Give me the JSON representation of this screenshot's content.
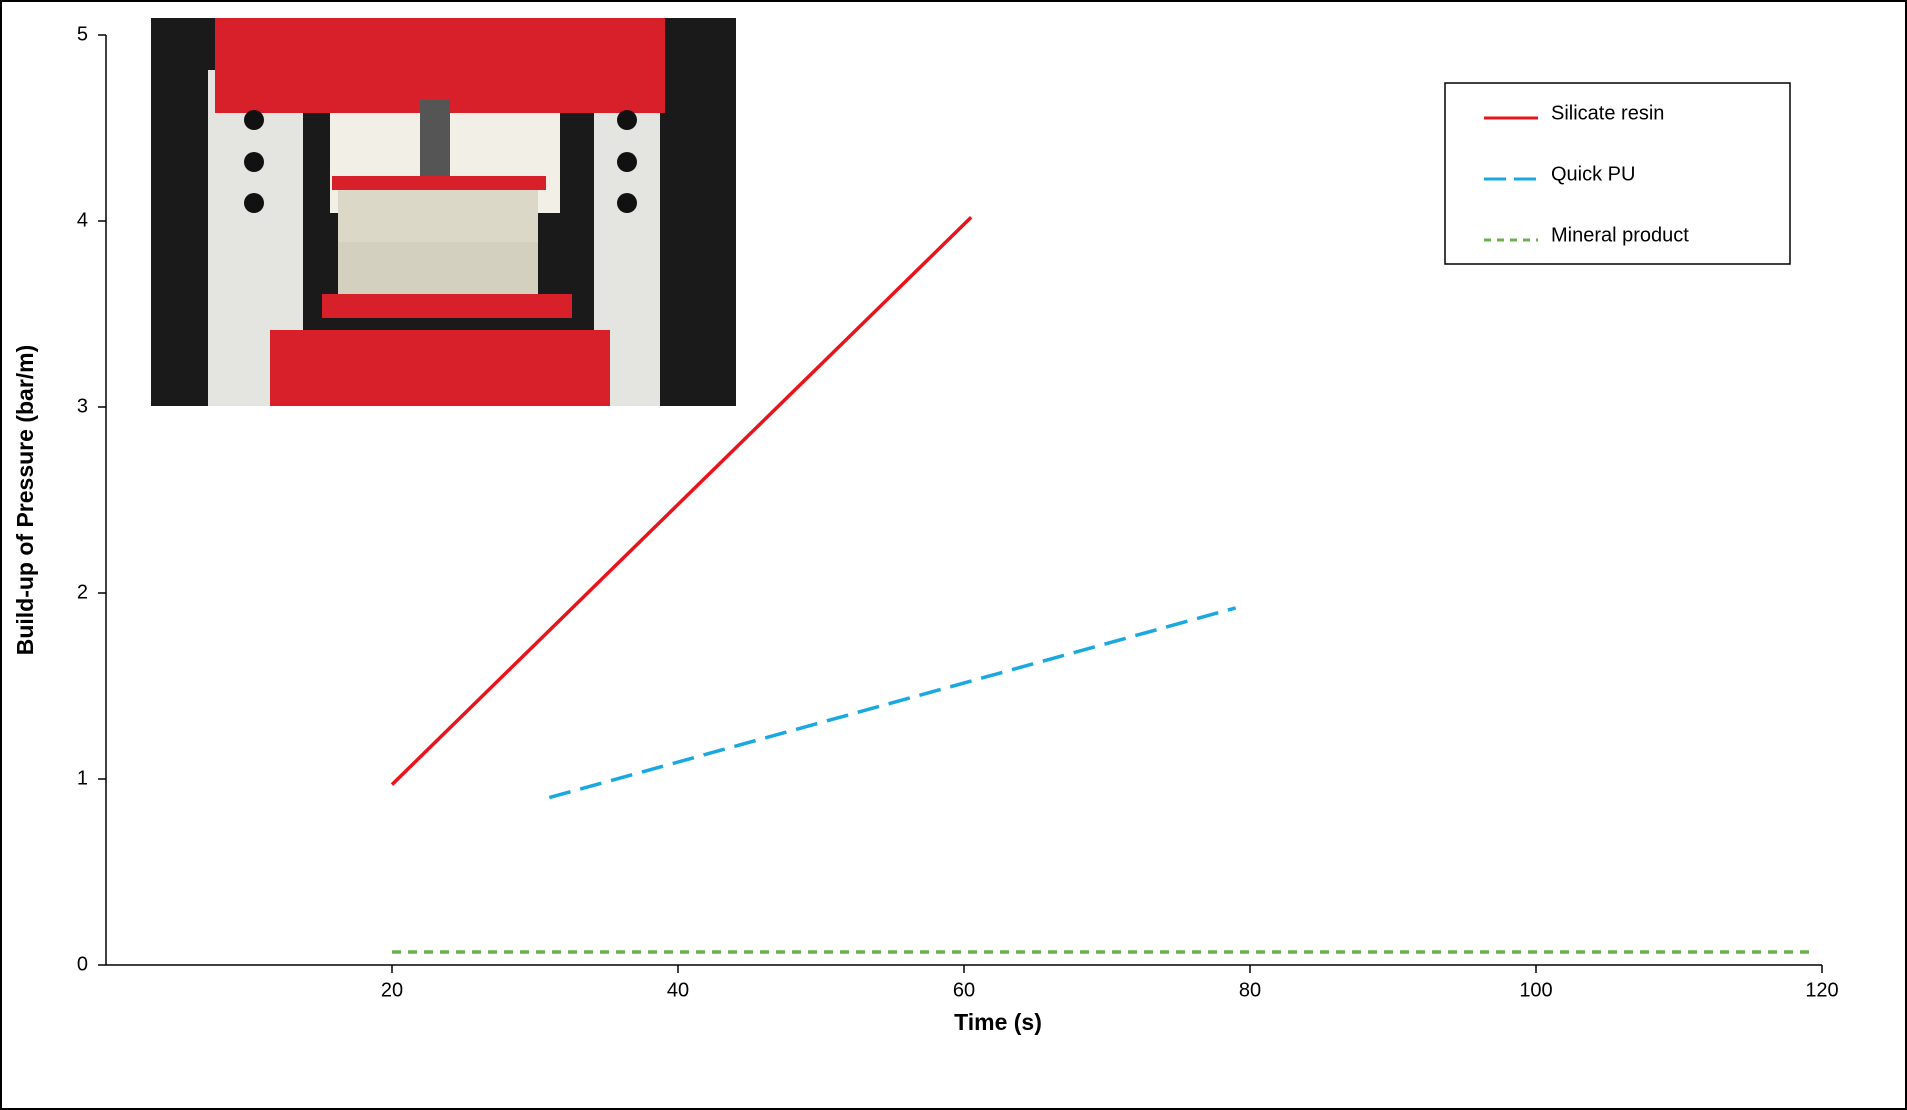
{
  "chart_data": {
    "type": "line",
    "xlabel": "Time (s)",
    "ylabel": "Build-up of Pressure (bar/m)",
    "xlim": [
      0,
      120
    ],
    "xticks": [
      20,
      40,
      60,
      80,
      100,
      120
    ],
    "ylim": [
      0,
      5
    ],
    "yticks": [
      0,
      1,
      2,
      3,
      4,
      5
    ],
    "legend": "upper right",
    "series": [
      {
        "name": "Silicate resin",
        "color": "#e8141c",
        "dash": "solid",
        "x": [
          20,
          60.5
        ],
        "values": [
          0.97,
          4.02
        ]
      },
      {
        "name": "Quick PU",
        "color": "#1aa8e0",
        "dash": "dashed",
        "x": [
          31,
          79
        ],
        "values": [
          0.9,
          1.92
        ]
      },
      {
        "name": "Mineral product",
        "color": "#6ab04c",
        "dash": "dotted",
        "x": [
          20,
          119.5
        ],
        "values": [
          0.07,
          0.07
        ]
      }
    ]
  }
}
